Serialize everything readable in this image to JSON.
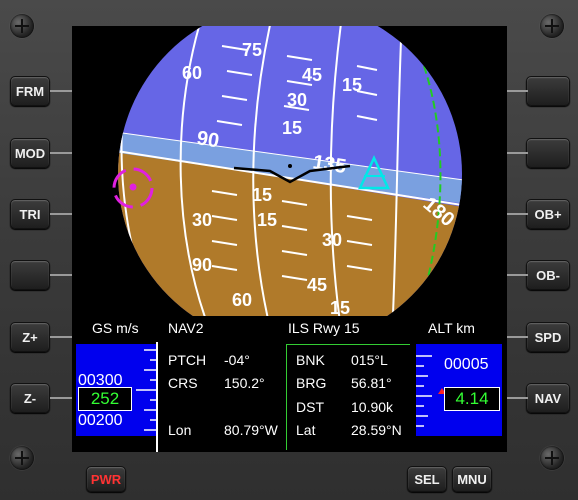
{
  "left_buttons": [
    {
      "label": "FRM",
      "name": "frm-button"
    },
    {
      "label": "MOD",
      "name": "mod-button"
    },
    {
      "label": "TRI",
      "name": "tri-button"
    },
    {
      "label": "",
      "name": "left-blank-button"
    },
    {
      "label": "Z+",
      "name": "zoom-in-button"
    },
    {
      "label": "Z-",
      "name": "zoom-out-button"
    }
  ],
  "right_buttons": [
    {
      "label": "",
      "name": "right-blank-button-1"
    },
    {
      "label": "",
      "name": "right-blank-button-2"
    },
    {
      "label": "OB+",
      "name": "ob-plus-button"
    },
    {
      "label": "OB-",
      "name": "ob-minus-button"
    },
    {
      "label": "SPD",
      "name": "spd-button"
    },
    {
      "label": "NAV",
      "name": "nav-button"
    }
  ],
  "bottom_buttons": {
    "pwr": "PWR",
    "sel": "SEL",
    "mnu": "MNU"
  },
  "adi": {
    "horizon_heading_labels": [
      "90",
      "135",
      "180"
    ],
    "pitch_labels": [
      "15",
      "30",
      "45",
      "60",
      "75",
      "90"
    ]
  },
  "panel": {
    "gs_label": "GS m/s",
    "alt_label": "ALT km",
    "nav_source": "NAV2",
    "approach": "ILS Rwy 15",
    "ptch_label": "PTCH",
    "ptch_value": "-04°",
    "crs_label": "CRS",
    "crs_value": "150.2°",
    "lon_label": "Lon",
    "lon_value": "80.79°W",
    "bnk_label": "BNK",
    "bnk_value": "015°L",
    "brg_label": "BRG",
    "brg_value": "56.81°",
    "dst_label": "DST",
    "dst_value": "10.90k",
    "lat_label": "Lat",
    "lat_value": "28.59°N"
  },
  "speed_tape": {
    "upper": "00300",
    "current": "252",
    "lower": "00200"
  },
  "alt_tape": {
    "upper": "00005",
    "current": "4.14"
  },
  "colors": {
    "sky": "#6666e6",
    "ground": "#b07a2a",
    "horizon_band": "#7aa0e0",
    "readout_green": "#33ff33",
    "label_green": "#33dd33",
    "tape_blue": "#0000ee",
    "target_magenta": "#e020e0",
    "marker_cyan": "#00e8e8",
    "pwr_red": "#ff3333"
  }
}
